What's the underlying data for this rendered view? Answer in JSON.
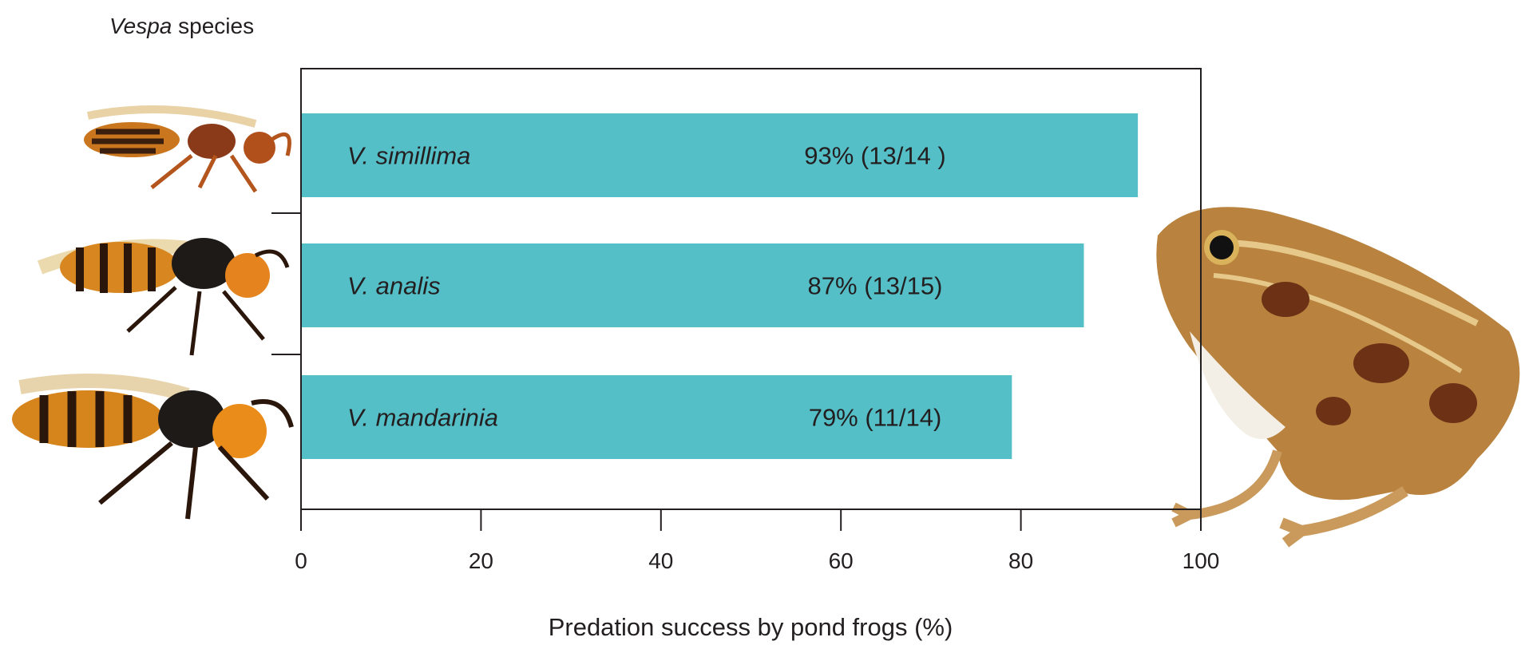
{
  "chart_data": {
    "type": "bar",
    "orientation": "horizontal",
    "title": "",
    "ylabel_genus": "Vespa",
    "ylabel_suffix": "species",
    "xlabel": "Predation success by pond frogs (%)",
    "xlim": [
      0,
      100
    ],
    "xticks": [
      0,
      20,
      40,
      60,
      80,
      100
    ],
    "grid": false,
    "bar_color": "#55bfc8",
    "categories": [
      "V. simillima",
      "V. analis",
      "V. mandarinia"
    ],
    "values": [
      93,
      87,
      79
    ],
    "data_labels": [
      "93% (13/14 )",
      "87% (13/15)",
      "79% (11/14)"
    ],
    "images": [
      "hornet-simillima",
      "hornet-analis",
      "hornet-mandarinia",
      "pond-frog"
    ]
  }
}
